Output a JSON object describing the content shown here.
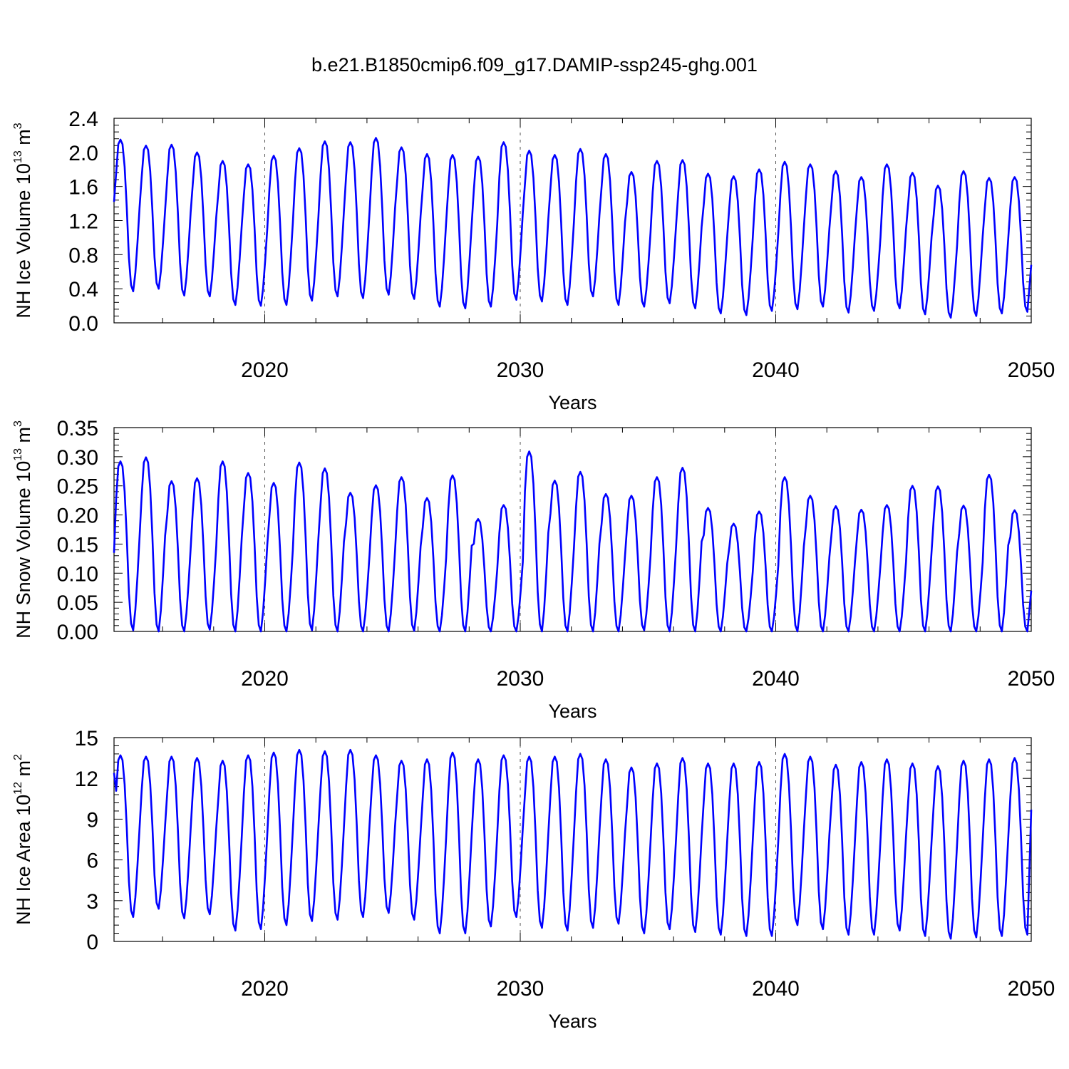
{
  "title": "b.e21.B1850cmip6.f09_g17.DAMIP-ssp245-ghg.001",
  "colors": {
    "series": "#0000ff",
    "axis": "#000000",
    "refline": "#555555"
  },
  "chart_data": [
    {
      "type": "line",
      "ylabel_main": "NH Ice Volume 10",
      "ylabel_exp": "13",
      "ylabel_unit": " m",
      "ylabel_unit_exp": "3",
      "xlabel": "Years",
      "xlim": [
        2014.1,
        2050.0
      ],
      "ylim": [
        0.0,
        2.4
      ],
      "yticks": [
        "0.0",
        "0.4",
        "0.8",
        "1.2",
        "1.6",
        "2.0",
        "2.4"
      ],
      "ytick_values": [
        0.0,
        0.4,
        0.8,
        1.2,
        1.6,
        2.0,
        2.4
      ],
      "xticks": [
        "2020",
        "2030",
        "2040",
        "2050"
      ],
      "xtick_values": [
        2020,
        2030,
        2040,
        2050
      ],
      "grid": "dashed vertical lines at 2020, 2030, 2040",
      "start": 2014.1,
      "step_years": 0.0833333,
      "start_value": 1.42,
      "annual_max": [
        2.15,
        2.08,
        2.09,
        2.0,
        1.9,
        1.86,
        1.96,
        2.05,
        2.13,
        2.12,
        2.17,
        2.06,
        1.98,
        1.97,
        1.95,
        2.12,
        2.02,
        1.97,
        2.04,
        1.98,
        1.77,
        1.9,
        1.91,
        1.75,
        1.72,
        1.8,
        1.89,
        1.86,
        1.78,
        1.71,
        1.86,
        1.76,
        1.61,
        1.78,
        1.7,
        1.71
      ],
      "annual_min": [
        0.37,
        0.4,
        0.32,
        0.31,
        0.21,
        0.2,
        0.21,
        0.26,
        0.31,
        0.29,
        0.33,
        0.28,
        0.19,
        0.17,
        0.19,
        0.27,
        0.25,
        0.21,
        0.31,
        0.21,
        0.19,
        0.23,
        0.17,
        0.11,
        0.09,
        0.14,
        0.16,
        0.19,
        0.12,
        0.14,
        0.17,
        0.1,
        0.06,
        0.08,
        0.11,
        0.13
      ],
      "end_value": 0.68
    },
    {
      "type": "line",
      "ylabel_main": "NH Snow Volume 10",
      "ylabel_exp": "13",
      "ylabel_unit": " m",
      "ylabel_unit_exp": "3",
      "xlabel": "Years",
      "xlim": [
        2014.1,
        2050.0
      ],
      "ylim": [
        0.0,
        0.35
      ],
      "yticks": [
        "0.00",
        "0.05",
        "0.10",
        "0.15",
        "0.20",
        "0.25",
        "0.30",
        "0.35"
      ],
      "ytick_values": [
        0.0,
        0.05,
        0.1,
        0.15,
        0.2,
        0.25,
        0.3,
        0.35
      ],
      "xticks": [
        "2020",
        "2030",
        "2040",
        "2050"
      ],
      "xtick_values": [
        2020,
        2030,
        2040,
        2050
      ],
      "grid": "dashed vertical lines at 2020, 2030, 2040",
      "start": 2014.1,
      "step_years": 0.0833333,
      "start_value": 0.135,
      "annual_max": [
        0.292,
        0.299,
        0.258,
        0.263,
        0.292,
        0.272,
        0.255,
        0.29,
        0.28,
        0.238,
        0.251,
        0.265,
        0.229,
        0.268,
        0.193,
        0.217,
        0.309,
        0.259,
        0.274,
        0.236,
        0.233,
        0.265,
        0.281,
        0.212,
        0.185,
        0.206,
        0.265,
        0.233,
        0.215,
        0.209,
        0.217,
        0.25,
        0.249,
        0.216,
        0.269,
        0.208
      ],
      "annual_min": [
        0.002,
        0.0,
        0.0,
        0.003,
        0.0,
        0.0,
        0.0,
        0.002,
        0.0,
        0.0,
        0.0,
        0.001,
        0.0,
        0.0,
        0.0,
        0.0,
        0.0,
        0.0,
        0.0,
        0.0,
        0.002,
        0.0,
        0.0,
        0.0,
        0.0,
        0.0,
        0.0,
        0.0,
        0.0,
        0.0,
        0.0,
        0.0,
        0.0,
        0.0,
        0.0,
        0.0
      ],
      "end_value": 0.07
    },
    {
      "type": "line",
      "ylabel_main": "NH Ice Area 10",
      "ylabel_exp": "12",
      "ylabel_unit": " m",
      "ylabel_unit_exp": "2",
      "xlabel": "Years",
      "xlim": [
        2014.1,
        2050.0
      ],
      "ylim": [
        0,
        15
      ],
      "yticks": [
        "0",
        "3",
        "6",
        "9",
        "12",
        "15"
      ],
      "ytick_values": [
        0,
        3,
        6,
        9,
        12,
        15
      ],
      "xticks": [
        "2020",
        "2030",
        "2040",
        "2050"
      ],
      "xtick_values": [
        2020,
        2030,
        2040,
        2050
      ],
      "grid": "dashed vertical lines at 2020, 2030, 2040",
      "start": 2014.1,
      "step_years": 0.0833333,
      "start_value": 12.4,
      "annual_max": [
        13.7,
        13.6,
        13.6,
        13.5,
        13.3,
        13.7,
        13.9,
        14.1,
        14.0,
        14.1,
        13.7,
        13.3,
        13.4,
        13.9,
        13.4,
        13.7,
        13.6,
        13.6,
        13.8,
        13.4,
        12.8,
        13.1,
        13.5,
        13.1,
        13.1,
        13.2,
        13.8,
        13.6,
        13.0,
        13.2,
        13.4,
        13.1,
        12.9,
        13.3,
        13.4,
        13.5
      ],
      "annual_min": [
        1.8,
        2.4,
        1.7,
        2.0,
        0.8,
        0.9,
        1.2,
        1.5,
        1.6,
        1.8,
        2.1,
        1.6,
        0.6,
        0.6,
        1.1,
        1.8,
        1.0,
        0.8,
        1.0,
        1.3,
        0.6,
        0.9,
        0.7,
        0.5,
        0.4,
        0.4,
        1.2,
        0.9,
        0.5,
        0.5,
        0.8,
        0.4,
        0.2,
        0.3,
        0.4,
        0.5
      ],
      "end_value": 9.7
    }
  ]
}
